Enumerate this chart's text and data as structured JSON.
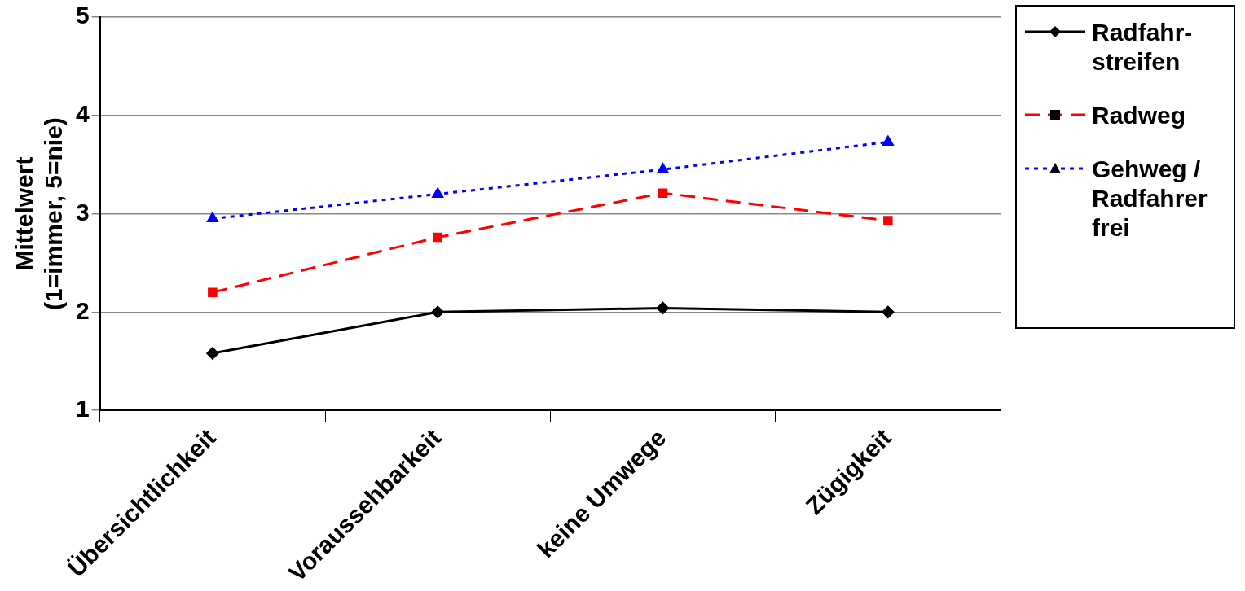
{
  "chart_data": {
    "type": "line",
    "ylabel": "Mittelwert\n(1=immer, 5=nie)",
    "categories": [
      "Übersichtlichkeit",
      "Voraussehbarkeit",
      "keine Umwege",
      "Zügigkeit"
    ],
    "series": [
      {
        "name": "Radfahr-streifen",
        "color": "#000000",
        "marker": "diamond",
        "line_style": "solid",
        "values": [
          1.58,
          2.0,
          2.04,
          2.0
        ]
      },
      {
        "name": "Radweg",
        "color": "#ff0000",
        "marker": "square",
        "line_style": "dashed",
        "values": [
          2.2,
          2.76,
          3.21,
          2.93
        ]
      },
      {
        "name": "Gehweg / Radfahrer frei",
        "color": "#0000ff",
        "marker": "triangle",
        "line_style": "dotted",
        "values": [
          2.95,
          3.2,
          3.45,
          3.73
        ]
      }
    ],
    "ylim": [
      1,
      5
    ],
    "yticks": [
      1,
      2,
      3,
      4,
      5
    ],
    "grid": "y",
    "legend": "right"
  }
}
